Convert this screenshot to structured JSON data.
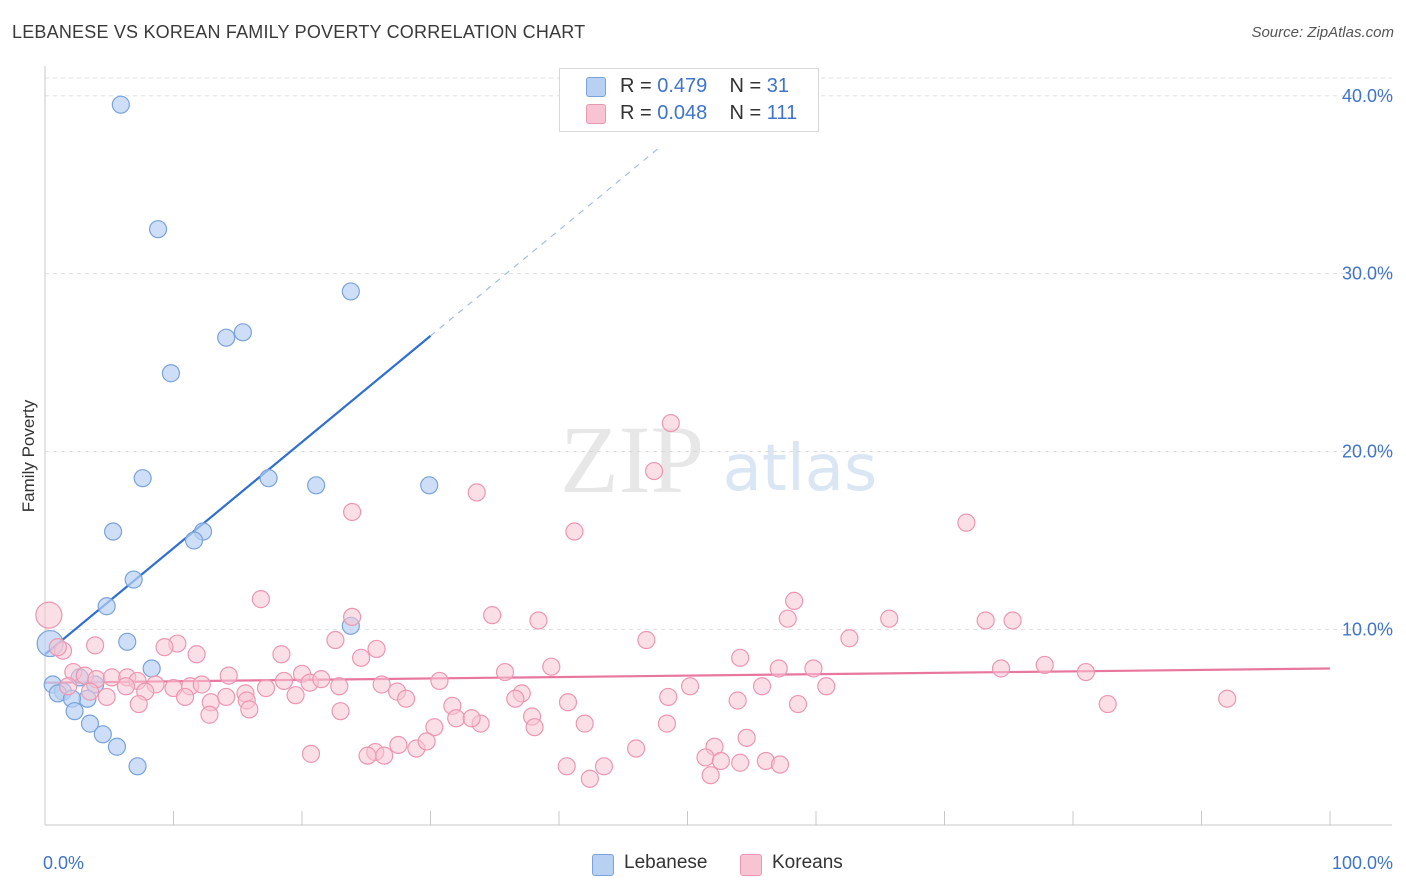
{
  "title": "LEBANESE VS KOREAN FAMILY POVERTY CORRELATION CHART",
  "source": "Source: ZipAtlas.com",
  "watermark": {
    "zip": "ZIP",
    "atlas": "atlas"
  },
  "legend": {
    "rows": [
      {
        "r_label": "R =",
        "r_value": "0.479",
        "n_label": "N =",
        "n_value": "31"
      },
      {
        "r_label": "R =",
        "r_value": "0.048",
        "n_label": "N =",
        "n_value": "111"
      }
    ]
  },
  "bottom_legend": {
    "lebanese": "Lebanese",
    "koreans": "Koreans"
  },
  "colors": {
    "lebanese_fill": "#b8d0f2",
    "lebanese_stroke": "#7aa3dc",
    "lebanese_line": "#2f6fcf",
    "koreans_fill": "#f7c4d3",
    "koreans_stroke": "#ec97b1",
    "koreans_line": "#e8779d",
    "tick_label": "#3f74c9",
    "grid": "#e0e0e0"
  },
  "chart_data": {
    "type": "scatter",
    "title": "LEBANESE VS KOREAN FAMILY POVERTY CORRELATION CHART",
    "xlabel": "",
    "ylabel": "Family Poverty",
    "xlim": [
      0,
      100
    ],
    "ylim": [
      -1,
      41
    ],
    "x_tick_labels": [
      {
        "value": 0,
        "label": "0.0%"
      },
      {
        "value": 100,
        "label": "100.0%"
      }
    ],
    "y_ticks": [
      {
        "value": 10,
        "label": "10.0%"
      },
      {
        "value": 20,
        "label": "20.0%"
      },
      {
        "value": 30,
        "label": "30.0%"
      },
      {
        "value": 40,
        "label": "40.0%"
      }
    ],
    "series": [
      {
        "name": "Lebanese",
        "R": 0.479,
        "N": 31,
        "trend": {
          "x0": 0,
          "y0": 8.6,
          "x1": 30,
          "y1": 26.5,
          "dash_to_x": 48,
          "dash_to_y": 37.2
        },
        "points": [
          [
            5.9,
            39.5
          ],
          [
            8.8,
            32.5
          ],
          [
            23.8,
            29.0
          ],
          [
            15.4,
            26.7
          ],
          [
            14.1,
            26.4
          ],
          [
            9.8,
            24.4
          ],
          [
            7.6,
            18.5
          ],
          [
            17.4,
            18.5
          ],
          [
            21.1,
            18.1
          ],
          [
            29.9,
            18.1
          ],
          [
            12.3,
            15.5
          ],
          [
            5.3,
            15.5
          ],
          [
            11.6,
            15.0
          ],
          [
            6.9,
            12.8
          ],
          [
            4.8,
            11.3
          ],
          [
            23.8,
            10.2
          ],
          [
            6.4,
            9.3
          ],
          [
            0.4,
            9.2
          ],
          [
            8.3,
            7.8
          ],
          [
            2.7,
            7.3
          ],
          [
            3.9,
            6.9
          ],
          [
            0.6,
            6.9
          ],
          [
            1.4,
            6.5
          ],
          [
            1.0,
            6.4
          ],
          [
            3.3,
            6.1
          ],
          [
            2.1,
            6.1
          ],
          [
            2.3,
            5.4
          ],
          [
            3.5,
            4.7
          ],
          [
            4.5,
            4.1
          ],
          [
            5.6,
            3.4
          ],
          [
            7.2,
            2.3
          ]
        ]
      },
      {
        "name": "Koreans",
        "R": 0.048,
        "N": 111,
        "trend": {
          "x0": 0,
          "y0": 7.0,
          "x1": 100,
          "y1": 7.8
        },
        "points": [
          [
            48.7,
            21.6
          ],
          [
            47.4,
            18.9
          ],
          [
            33.6,
            17.7
          ],
          [
            23.9,
            16.6
          ],
          [
            71.7,
            16.0
          ],
          [
            41.2,
            15.5
          ],
          [
            16.8,
            11.7
          ],
          [
            58.3,
            11.6
          ],
          [
            34.8,
            10.8
          ],
          [
            23.9,
            10.7
          ],
          [
            38.4,
            10.5
          ],
          [
            57.8,
            10.6
          ],
          [
            65.7,
            10.6
          ],
          [
            73.2,
            10.5
          ],
          [
            75.3,
            10.5
          ],
          [
            0.3,
            10.8
          ],
          [
            1.4,
            8.8
          ],
          [
            1.0,
            9.0
          ],
          [
            3.9,
            9.1
          ],
          [
            62.6,
            9.5
          ],
          [
            46.8,
            9.4
          ],
          [
            22.6,
            9.4
          ],
          [
            10.3,
            9.2
          ],
          [
            9.3,
            9.0
          ],
          [
            25.8,
            8.9
          ],
          [
            18.4,
            8.6
          ],
          [
            11.8,
            8.6
          ],
          [
            24.6,
            8.4
          ],
          [
            54.1,
            8.4
          ],
          [
            39.4,
            7.9
          ],
          [
            59.8,
            7.8
          ],
          [
            57.1,
            7.8
          ],
          [
            35.8,
            7.6
          ],
          [
            2.2,
            7.6
          ],
          [
            20.0,
            7.5
          ],
          [
            3.1,
            7.4
          ],
          [
            4.0,
            7.2
          ],
          [
            5.2,
            7.3
          ],
          [
            6.4,
            7.3
          ],
          [
            7.2,
            7.1
          ],
          [
            8.6,
            6.9
          ],
          [
            10.0,
            6.7
          ],
          [
            11.3,
            6.8
          ],
          [
            12.2,
            6.9
          ],
          [
            14.3,
            7.4
          ],
          [
            15.6,
            6.4
          ],
          [
            17.2,
            6.7
          ],
          [
            18.6,
            7.1
          ],
          [
            19.5,
            6.3
          ],
          [
            20.6,
            7.0
          ],
          [
            21.5,
            7.2
          ],
          [
            22.9,
            6.8
          ],
          [
            26.2,
            6.9
          ],
          [
            27.4,
            6.5
          ],
          [
            28.1,
            6.1
          ],
          [
            30.7,
            7.1
          ],
          [
            6.3,
            6.8
          ],
          [
            7.8,
            6.5
          ],
          [
            10.9,
            6.2
          ],
          [
            12.9,
            5.9
          ],
          [
            14.1,
            6.2
          ],
          [
            15.7,
            6.0
          ],
          [
            1.8,
            6.8
          ],
          [
            3.5,
            6.5
          ],
          [
            4.8,
            6.2
          ],
          [
            37.1,
            6.4
          ],
          [
            36.6,
            6.1
          ],
          [
            48.5,
            6.2
          ],
          [
            50.2,
            6.8
          ],
          [
            55.8,
            6.8
          ],
          [
            60.8,
            6.8
          ],
          [
            58.6,
            5.8
          ],
          [
            53.9,
            6.0
          ],
          [
            40.7,
            5.9
          ],
          [
            31.7,
            5.7
          ],
          [
            7.3,
            5.8
          ],
          [
            12.8,
            5.2
          ],
          [
            15.9,
            5.5
          ],
          [
            23.0,
            5.4
          ],
          [
            33.9,
            4.7
          ],
          [
            37.9,
            5.1
          ],
          [
            32.0,
            5.0
          ],
          [
            30.3,
            4.5
          ],
          [
            33.2,
            5.0
          ],
          [
            38.1,
            4.5
          ],
          [
            42.0,
            4.7
          ],
          [
            48.4,
            4.7
          ],
          [
            27.5,
            3.5
          ],
          [
            28.9,
            3.3
          ],
          [
            29.7,
            3.7
          ],
          [
            25.7,
            3.1
          ],
          [
            26.4,
            2.9
          ],
          [
            20.7,
            3.0
          ],
          [
            25.1,
            2.9
          ],
          [
            40.6,
            2.3
          ],
          [
            43.5,
            2.3
          ],
          [
            46.0,
            3.3
          ],
          [
            52.1,
            3.4
          ],
          [
            51.4,
            2.8
          ],
          [
            52.6,
            2.6
          ],
          [
            54.1,
            2.5
          ],
          [
            56.1,
            2.6
          ],
          [
            57.2,
            2.4
          ],
          [
            54.6,
            3.9
          ],
          [
            51.8,
            1.8
          ],
          [
            42.4,
            1.6
          ],
          [
            92.0,
            6.1
          ],
          [
            74.4,
            7.8
          ],
          [
            77.8,
            8.0
          ],
          [
            81.0,
            7.6
          ],
          [
            82.7,
            5.8
          ]
        ]
      }
    ]
  }
}
